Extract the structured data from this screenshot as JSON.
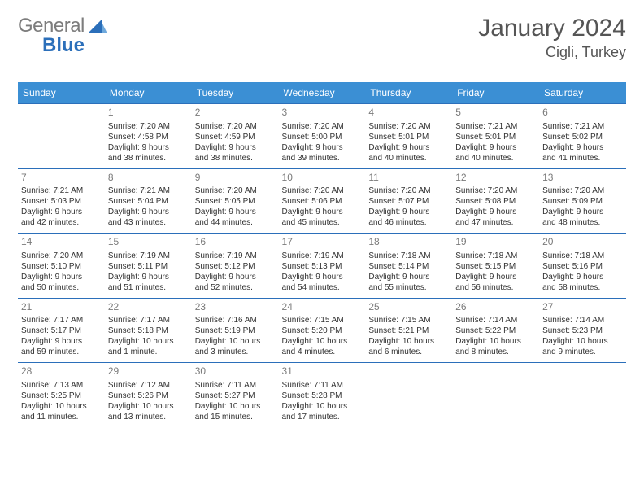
{
  "brand": {
    "word1": "General",
    "word2": "Blue",
    "logo_color": "#2b6fba"
  },
  "title": {
    "month": "January 2024",
    "location": "Cigli, Turkey"
  },
  "styling": {
    "header_bg": "#3b8fd4",
    "header_text": "#ffffff",
    "week_border": "#2b6fba",
    "daynum_color": "#7a7a7a",
    "body_text": "#333333",
    "page_bg": "#ffffff",
    "font_family": "Arial",
    "columns": 7,
    "day_header_fontsize": 12,
    "daynum_fontsize": 12,
    "cell_fontsize": 10
  },
  "day_headers": [
    "Sunday",
    "Monday",
    "Tuesday",
    "Wednesday",
    "Thursday",
    "Friday",
    "Saturday"
  ],
  "weeks": [
    [
      {
        "num": "",
        "lines": []
      },
      {
        "num": "1",
        "lines": [
          "Sunrise: 7:20 AM",
          "Sunset: 4:58 PM",
          "Daylight: 9 hours",
          "and 38 minutes."
        ]
      },
      {
        "num": "2",
        "lines": [
          "Sunrise: 7:20 AM",
          "Sunset: 4:59 PM",
          "Daylight: 9 hours",
          "and 38 minutes."
        ]
      },
      {
        "num": "3",
        "lines": [
          "Sunrise: 7:20 AM",
          "Sunset: 5:00 PM",
          "Daylight: 9 hours",
          "and 39 minutes."
        ]
      },
      {
        "num": "4",
        "lines": [
          "Sunrise: 7:20 AM",
          "Sunset: 5:01 PM",
          "Daylight: 9 hours",
          "and 40 minutes."
        ]
      },
      {
        "num": "5",
        "lines": [
          "Sunrise: 7:21 AM",
          "Sunset: 5:01 PM",
          "Daylight: 9 hours",
          "and 40 minutes."
        ]
      },
      {
        "num": "6",
        "lines": [
          "Sunrise: 7:21 AM",
          "Sunset: 5:02 PM",
          "Daylight: 9 hours",
          "and 41 minutes."
        ]
      }
    ],
    [
      {
        "num": "7",
        "lines": [
          "Sunrise: 7:21 AM",
          "Sunset: 5:03 PM",
          "Daylight: 9 hours",
          "and 42 minutes."
        ]
      },
      {
        "num": "8",
        "lines": [
          "Sunrise: 7:21 AM",
          "Sunset: 5:04 PM",
          "Daylight: 9 hours",
          "and 43 minutes."
        ]
      },
      {
        "num": "9",
        "lines": [
          "Sunrise: 7:20 AM",
          "Sunset: 5:05 PM",
          "Daylight: 9 hours",
          "and 44 minutes."
        ]
      },
      {
        "num": "10",
        "lines": [
          "Sunrise: 7:20 AM",
          "Sunset: 5:06 PM",
          "Daylight: 9 hours",
          "and 45 minutes."
        ]
      },
      {
        "num": "11",
        "lines": [
          "Sunrise: 7:20 AM",
          "Sunset: 5:07 PM",
          "Daylight: 9 hours",
          "and 46 minutes."
        ]
      },
      {
        "num": "12",
        "lines": [
          "Sunrise: 7:20 AM",
          "Sunset: 5:08 PM",
          "Daylight: 9 hours",
          "and 47 minutes."
        ]
      },
      {
        "num": "13",
        "lines": [
          "Sunrise: 7:20 AM",
          "Sunset: 5:09 PM",
          "Daylight: 9 hours",
          "and 48 minutes."
        ]
      }
    ],
    [
      {
        "num": "14",
        "lines": [
          "Sunrise: 7:20 AM",
          "Sunset: 5:10 PM",
          "Daylight: 9 hours",
          "and 50 minutes."
        ]
      },
      {
        "num": "15",
        "lines": [
          "Sunrise: 7:19 AM",
          "Sunset: 5:11 PM",
          "Daylight: 9 hours",
          "and 51 minutes."
        ]
      },
      {
        "num": "16",
        "lines": [
          "Sunrise: 7:19 AM",
          "Sunset: 5:12 PM",
          "Daylight: 9 hours",
          "and 52 minutes."
        ]
      },
      {
        "num": "17",
        "lines": [
          "Sunrise: 7:19 AM",
          "Sunset: 5:13 PM",
          "Daylight: 9 hours",
          "and 54 minutes."
        ]
      },
      {
        "num": "18",
        "lines": [
          "Sunrise: 7:18 AM",
          "Sunset: 5:14 PM",
          "Daylight: 9 hours",
          "and 55 minutes."
        ]
      },
      {
        "num": "19",
        "lines": [
          "Sunrise: 7:18 AM",
          "Sunset: 5:15 PM",
          "Daylight: 9 hours",
          "and 56 minutes."
        ]
      },
      {
        "num": "20",
        "lines": [
          "Sunrise: 7:18 AM",
          "Sunset: 5:16 PM",
          "Daylight: 9 hours",
          "and 58 minutes."
        ]
      }
    ],
    [
      {
        "num": "21",
        "lines": [
          "Sunrise: 7:17 AM",
          "Sunset: 5:17 PM",
          "Daylight: 9 hours",
          "and 59 minutes."
        ]
      },
      {
        "num": "22",
        "lines": [
          "Sunrise: 7:17 AM",
          "Sunset: 5:18 PM",
          "Daylight: 10 hours",
          "and 1 minute."
        ]
      },
      {
        "num": "23",
        "lines": [
          "Sunrise: 7:16 AM",
          "Sunset: 5:19 PM",
          "Daylight: 10 hours",
          "and 3 minutes."
        ]
      },
      {
        "num": "24",
        "lines": [
          "Sunrise: 7:15 AM",
          "Sunset: 5:20 PM",
          "Daylight: 10 hours",
          "and 4 minutes."
        ]
      },
      {
        "num": "25",
        "lines": [
          "Sunrise: 7:15 AM",
          "Sunset: 5:21 PM",
          "Daylight: 10 hours",
          "and 6 minutes."
        ]
      },
      {
        "num": "26",
        "lines": [
          "Sunrise: 7:14 AM",
          "Sunset: 5:22 PM",
          "Daylight: 10 hours",
          "and 8 minutes."
        ]
      },
      {
        "num": "27",
        "lines": [
          "Sunrise: 7:14 AM",
          "Sunset: 5:23 PM",
          "Daylight: 10 hours",
          "and 9 minutes."
        ]
      }
    ],
    [
      {
        "num": "28",
        "lines": [
          "Sunrise: 7:13 AM",
          "Sunset: 5:25 PM",
          "Daylight: 10 hours",
          "and 11 minutes."
        ]
      },
      {
        "num": "29",
        "lines": [
          "Sunrise: 7:12 AM",
          "Sunset: 5:26 PM",
          "Daylight: 10 hours",
          "and 13 minutes."
        ]
      },
      {
        "num": "30",
        "lines": [
          "Sunrise: 7:11 AM",
          "Sunset: 5:27 PM",
          "Daylight: 10 hours",
          "and 15 minutes."
        ]
      },
      {
        "num": "31",
        "lines": [
          "Sunrise: 7:11 AM",
          "Sunset: 5:28 PM",
          "Daylight: 10 hours",
          "and 17 minutes."
        ]
      },
      {
        "num": "",
        "lines": []
      },
      {
        "num": "",
        "lines": []
      },
      {
        "num": "",
        "lines": []
      }
    ]
  ]
}
